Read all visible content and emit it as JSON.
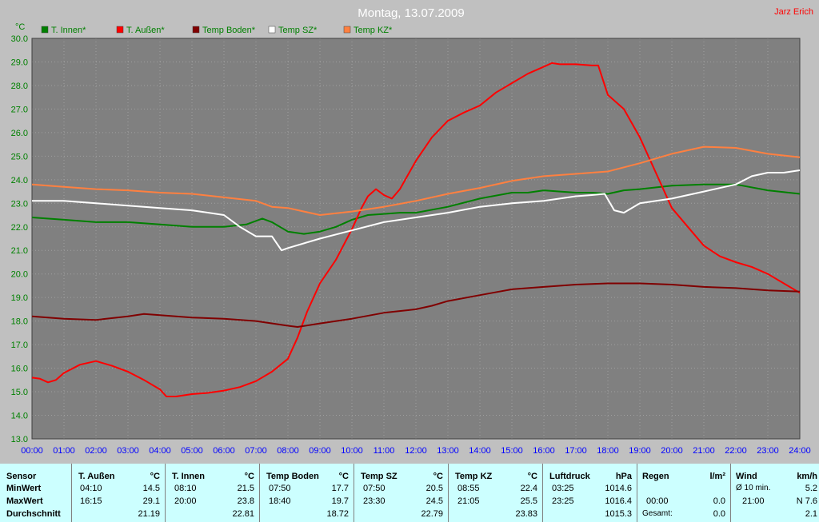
{
  "chart_data": {
    "type": "line",
    "title": "Montag, 13.07.2009",
    "author": "Jarz Erich",
    "yunit": "°C",
    "ylim": [
      13.0,
      30.0
    ],
    "xlim": [
      0,
      24
    ],
    "grid": true,
    "legend_position": "top-left",
    "yticks": [
      "13.0",
      "14.0",
      "15.0",
      "16.0",
      "17.0",
      "18.0",
      "19.0",
      "20.0",
      "21.0",
      "22.0",
      "23.0",
      "24.0",
      "25.0",
      "26.0",
      "27.0",
      "28.0",
      "29.0",
      "30.0"
    ],
    "xticks": [
      "00:00",
      "01:00",
      "02:00",
      "03:00",
      "04:00",
      "05:00",
      "06:00",
      "07:00",
      "08:00",
      "09:00",
      "10:00",
      "11:00",
      "12:00",
      "13:00",
      "14:00",
      "15:00",
      "16:00",
      "17:00",
      "18:00",
      "19:00",
      "20:00",
      "21:00",
      "22:00",
      "23:00",
      "24:00"
    ],
    "series": [
      {
        "name": "T. Innen*",
        "color": "#008000",
        "x": [
          0,
          1,
          2,
          3,
          4,
          5,
          6,
          6.7,
          7.2,
          7.5,
          8,
          8.5,
          9,
          9.5,
          10,
          10.5,
          11,
          11.5,
          12,
          13,
          14,
          15,
          15.5,
          16,
          16.5,
          17,
          17.5,
          18,
          18.5,
          19,
          20,
          21,
          22,
          23,
          24
        ],
        "y": [
          22.4,
          22.3,
          22.2,
          22.2,
          22.1,
          22.0,
          22.0,
          22.1,
          22.35,
          22.2,
          21.8,
          21.7,
          21.8,
          22.0,
          22.3,
          22.5,
          22.55,
          22.6,
          22.6,
          22.85,
          23.2,
          23.45,
          23.45,
          23.55,
          23.5,
          23.45,
          23.45,
          23.4,
          23.55,
          23.6,
          23.75,
          23.8,
          23.8,
          23.55,
          23.4
        ]
      },
      {
        "name": "T. Außen*",
        "color": "#ff0000",
        "x": [
          0,
          0.25,
          0.5,
          0.75,
          1,
          1.5,
          2,
          2.5,
          3,
          3.5,
          4,
          4.2,
          4.5,
          5,
          5.5,
          6,
          6.5,
          7,
          7.5,
          8,
          8.3,
          8.6,
          9,
          9.5,
          10,
          10.3,
          10.5,
          10.75,
          11,
          11.25,
          11.5,
          12,
          12.5,
          13,
          13.5,
          14,
          14.5,
          15,
          15.5,
          16,
          16.25,
          16.5,
          17,
          17.5,
          17.7,
          18,
          18.5,
          19,
          19.5,
          20,
          20.5,
          21,
          21.5,
          22,
          22.5,
          23,
          23.5,
          24
        ],
        "y": [
          15.6,
          15.55,
          15.4,
          15.5,
          15.8,
          16.15,
          16.3,
          16.1,
          15.85,
          15.5,
          15.1,
          14.8,
          14.8,
          14.9,
          14.95,
          15.05,
          15.2,
          15.45,
          15.85,
          16.4,
          17.3,
          18.4,
          19.6,
          20.6,
          21.9,
          22.8,
          23.3,
          23.6,
          23.35,
          23.2,
          23.6,
          24.8,
          25.8,
          26.5,
          26.85,
          27.15,
          27.7,
          28.1,
          28.5,
          28.8,
          28.95,
          28.9,
          28.9,
          28.85,
          28.85,
          27.6,
          27.0,
          25.8,
          24.3,
          22.8,
          22.0,
          21.2,
          20.75,
          20.5,
          20.3,
          20.0,
          19.6,
          19.2
        ]
      },
      {
        "name": "Temp Boden*",
        "color": "#800000",
        "x": [
          0,
          1,
          2,
          3,
          3.5,
          4,
          5,
          6,
          7,
          8,
          8.3,
          9,
          10,
          11,
          12,
          12.5,
          13,
          14,
          15,
          16,
          17,
          18,
          19,
          20,
          21,
          22,
          23,
          24
        ],
        "y": [
          18.2,
          18.1,
          18.05,
          18.2,
          18.3,
          18.25,
          18.15,
          18.1,
          18.0,
          17.8,
          17.75,
          17.9,
          18.1,
          18.35,
          18.5,
          18.65,
          18.85,
          19.1,
          19.35,
          19.45,
          19.55,
          19.6,
          19.6,
          19.55,
          19.45,
          19.4,
          19.3,
          19.25
        ]
      },
      {
        "name": "Temp SZ*",
        "color": "#ffffff",
        "x": [
          0,
          1,
          2,
          3,
          4,
          5,
          6,
          6.5,
          7,
          7.5,
          7.8,
          8,
          9,
          10,
          11,
          12,
          13,
          14,
          15,
          16,
          17,
          17.5,
          17.9,
          18.2,
          18.5,
          19,
          20,
          21,
          22,
          22.5,
          23,
          23.5,
          24
        ],
        "y": [
          23.1,
          23.1,
          23.0,
          22.9,
          22.8,
          22.7,
          22.5,
          22.0,
          21.6,
          21.6,
          21.0,
          21.1,
          21.5,
          21.85,
          22.2,
          22.4,
          22.6,
          22.85,
          23.0,
          23.1,
          23.3,
          23.35,
          23.4,
          22.7,
          22.6,
          23.0,
          23.2,
          23.5,
          23.8,
          24.15,
          24.3,
          24.3,
          24.4
        ]
      },
      {
        "name": "Temp KZ*",
        "color": "#ff8040",
        "x": [
          0,
          1,
          2,
          3,
          4,
          5,
          6,
          7,
          7.5,
          8,
          9,
          10,
          11,
          12,
          13,
          14,
          15,
          16,
          17,
          18,
          19,
          20,
          21,
          22,
          23,
          24
        ],
        "y": [
          23.8,
          23.7,
          23.6,
          23.55,
          23.45,
          23.4,
          23.25,
          23.1,
          22.85,
          22.8,
          22.5,
          22.65,
          22.85,
          23.1,
          23.4,
          23.65,
          23.95,
          24.15,
          24.25,
          24.35,
          24.7,
          25.1,
          25.4,
          25.35,
          25.1,
          24.95
        ]
      }
    ]
  },
  "stats": {
    "labels": {
      "sensor": "Sensor",
      "min": "MinWert",
      "max": "MaxWert",
      "avg": "Durchschnitt"
    },
    "t_aussen": {
      "name": "T. Außen",
      "unit": "°C",
      "min_time": "04:10",
      "min_val": "14.5",
      "max_time": "16:15",
      "max_val": "29.1",
      "avg": "21.19"
    },
    "t_innen": {
      "name": "T. Innen",
      "unit": "°C",
      "min_time": "08:10",
      "min_val": "21.5",
      "max_time": "20:00",
      "max_val": "23.8",
      "avg": "22.81"
    },
    "boden": {
      "name": "Temp Boden",
      "unit": "°C",
      "min_time": "07:50",
      "min_val": "17.7",
      "max_time": "18:40",
      "max_val": "19.7",
      "avg": "18.72"
    },
    "sz": {
      "name": "Temp SZ",
      "unit": "°C",
      "min_time": "07:50",
      "min_val": "20.5",
      "max_time": "23:30",
      "max_val": "24.5",
      "avg": "22.79"
    },
    "kz": {
      "name": "Temp KZ",
      "unit": "°C",
      "min_time": "08:55",
      "min_val": "22.4",
      "max_time": "21:05",
      "max_val": "25.5",
      "avg": "23.83"
    },
    "luftdruck": {
      "name": "Luftdruck",
      "unit": "hPa",
      "min_time": "03:25",
      "min_val": "1014.6",
      "max_time": "23:25",
      "max_val": "1016.4",
      "avg": "1015.3"
    },
    "regen": {
      "name": "Regen",
      "unit": "l/m²",
      "min_time": "00:00",
      "min_val": "0.0",
      "gesamt_label": "Gesamt:",
      "gesamt_val": "0.0"
    },
    "wind": {
      "name": "Wind",
      "unit": "km/h",
      "row1_label": "Ø 10 min.",
      "row1_val": "5.2",
      "max_time": "21:00",
      "max_val": "N 7.6",
      "avg": "2.1"
    }
  }
}
